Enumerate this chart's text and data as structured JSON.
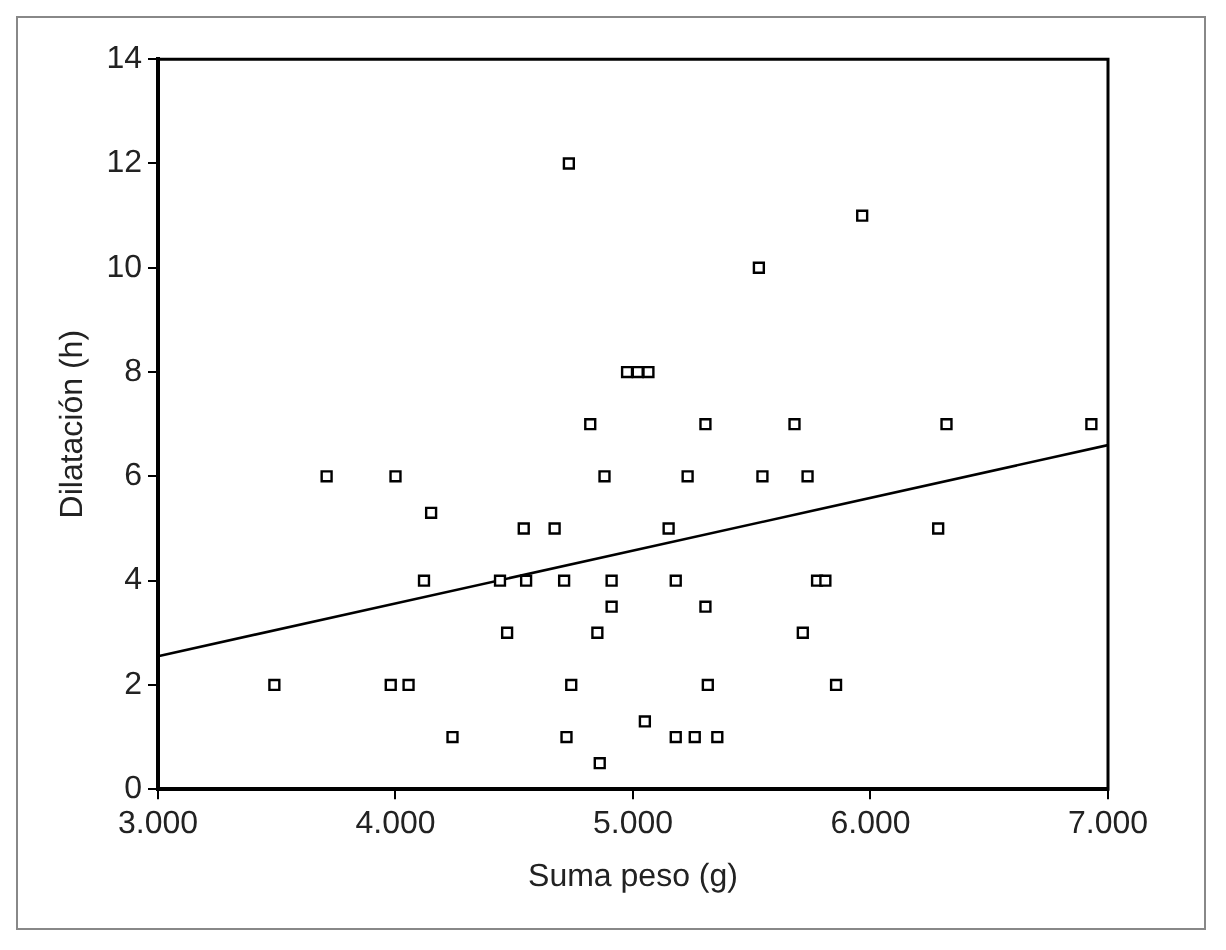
{
  "chart_data": {
    "type": "scatter",
    "xlabel": "Suma peso (g)",
    "ylabel": "Dilatación (h)",
    "xlim": [
      3000,
      7000
    ],
    "xticks": [
      {
        "value": 3000,
        "label": "3.000"
      },
      {
        "value": 4000,
        "label": "4.000"
      },
      {
        "value": 5000,
        "label": "5.000"
      },
      {
        "value": 6000,
        "label": "6.000"
      },
      {
        "value": 7000,
        "label": "7.000"
      }
    ],
    "ylim": [
      0,
      14
    ],
    "yticks": [
      0,
      2,
      4,
      6,
      8,
      10,
      12,
      14
    ],
    "grid": false,
    "legend": false,
    "series": [
      {
        "type": "scatter",
        "marker": "square",
        "color": "#000000",
        "x": [
          3490,
          3710,
          4000,
          3980,
          4055,
          4150,
          4120,
          4240,
          4440,
          4470,
          4540,
          4550,
          4670,
          4710,
          4720,
          4740,
          4730,
          4820,
          4850,
          4860,
          4880,
          4910,
          4910,
          4975,
          5020,
          5065,
          5050,
          5150,
          5180,
          5180,
          5230,
          5260,
          5305,
          5305,
          5315,
          5355,
          5530,
          5545,
          5680,
          5715,
          5735,
          5775,
          5810,
          5855,
          5965,
          6285,
          6320,
          6930
        ],
        "values": [
          2,
          6,
          6,
          2,
          2,
          5.3,
          4,
          1,
          4,
          3,
          5,
          4,
          5,
          4,
          1,
          2,
          12,
          7,
          3,
          0.5,
          6,
          4,
          3.5,
          8,
          8,
          8,
          1.3,
          5,
          4,
          1,
          6,
          1,
          7,
          3.5,
          2,
          1,
          10,
          6,
          7,
          3,
          6,
          4,
          4,
          2,
          11,
          5,
          7,
          7
        ]
      },
      {
        "type": "line",
        "marker": "none",
        "line_style": "solid",
        "color": "#000000",
        "x": [
          3000,
          7000
        ],
        "values": [
          2.55,
          6.6
        ]
      }
    ]
  }
}
